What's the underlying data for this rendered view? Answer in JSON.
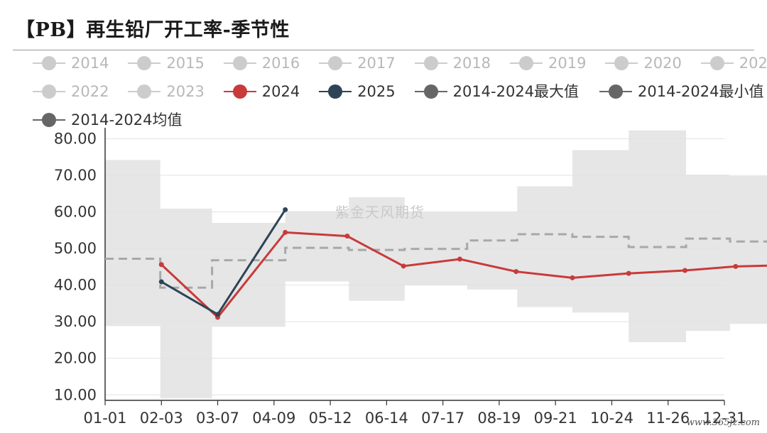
{
  "title": "【PB】再生铅厂开工率-季节性",
  "watermark": "紫金天风期货",
  "site_mark": "www.365jz.com",
  "colors": {
    "inactive": "#cccccc",
    "c2024": "#c93a3a",
    "c2025": "#2e4456",
    "max": "#666666",
    "min": "#666666",
    "avg": "#666666",
    "band": "#e6e6e6",
    "avg_line": "#a8a8a8"
  },
  "legend": [
    {
      "label": "2014",
      "color": "#cccccc",
      "text_color": "#b8b8b8"
    },
    {
      "label": "2015",
      "color": "#cccccc",
      "text_color": "#b8b8b8"
    },
    {
      "label": "2016",
      "color": "#cccccc",
      "text_color": "#b8b8b8"
    },
    {
      "label": "2017",
      "color": "#cccccc",
      "text_color": "#b8b8b8"
    },
    {
      "label": "2018",
      "color": "#cccccc",
      "text_color": "#b8b8b8"
    },
    {
      "label": "2019",
      "color": "#cccccc",
      "text_color": "#b8b8b8"
    },
    {
      "label": "2020",
      "color": "#cccccc",
      "text_color": "#b8b8b8"
    },
    {
      "label": "2021",
      "color": "#cccccc",
      "text_color": "#b8b8b8"
    },
    {
      "label": "2022",
      "color": "#cccccc",
      "text_color": "#b8b8b8"
    },
    {
      "label": "2023",
      "color": "#cccccc",
      "text_color": "#b8b8b8"
    },
    {
      "label": "2024",
      "color": "#c93a3a",
      "text_color": "#333333"
    },
    {
      "label": "2025",
      "color": "#2e4456",
      "text_color": "#333333"
    },
    {
      "label": "2014-2024最大值",
      "color": "#666666",
      "text_color": "#333333"
    },
    {
      "label": "2014-2024最小值",
      "color": "#666666",
      "text_color": "#333333"
    },
    {
      "label": "2014-2024均值",
      "color": "#666666",
      "text_color": "#333333"
    }
  ],
  "chart_data": {
    "type": "line",
    "x_ticks": [
      "01-01",
      "02-03",
      "03-07",
      "04-09",
      "05-12",
      "06-14",
      "07-17",
      "08-19",
      "09-21",
      "10-24",
      "11-26",
      "12-31"
    ],
    "y_ticks": [
      "10.00",
      "20.00",
      "30.00",
      "40.00",
      "50.00",
      "60.00",
      "70.00",
      "80.00"
    ],
    "ylim": [
      8.5,
      83
    ],
    "xlim": [
      "01-01",
      "12-31"
    ],
    "grid": "horizontal",
    "series": [
      {
        "name": "2024",
        "points": [
          {
            "x": "02-03",
            "y": 45.6
          },
          {
            "x": "03-07",
            "y": 31.2
          },
          {
            "x": "04-09",
            "y": 54.4
          },
          {
            "x": "05-12",
            "y": 53.4
          },
          {
            "x": "06-14",
            "y": 45.2
          },
          {
            "x": "07-17",
            "y": 47.1
          },
          {
            "x": "08-19",
            "y": 43.7
          },
          {
            "x": "09-21",
            "y": 42.0
          },
          {
            "x": "10-24",
            "y": 43.2
          },
          {
            "x": "11-26",
            "y": 44.0
          },
          {
            "x": "12-31",
            "y": 45.1
          },
          {
            "x": "12-31",
            "y": 45.4
          }
        ]
      },
      {
        "name": "2025",
        "points": [
          {
            "x": "02-03",
            "y": 40.9
          },
          {
            "x": "03-07",
            "y": 32.0
          },
          {
            "x": "04-09",
            "y": 60.6
          }
        ]
      },
      {
        "name": "2014-2024最大值",
        "step_values": [
          74.2,
          60.9,
          57.0,
          60.2,
          64.0,
          60.0,
          60.0,
          67.0,
          76.9,
          82.3,
          70.2,
          70.0,
          65.8
        ]
      },
      {
        "name": "2014-2024最小值",
        "step_values": [
          28.8,
          9.0,
          28.6,
          41.0,
          35.7,
          40.0,
          38.8,
          34.0,
          32.5,
          24.4,
          27.5,
          29.4,
          29.4
        ]
      },
      {
        "name": "2014-2024均值",
        "step_values": [
          47.2,
          39.3,
          46.8,
          50.2,
          49.6,
          49.9,
          52.2,
          53.9,
          53.2,
          50.4,
          52.7,
          51.9,
          51.9
        ]
      }
    ]
  }
}
